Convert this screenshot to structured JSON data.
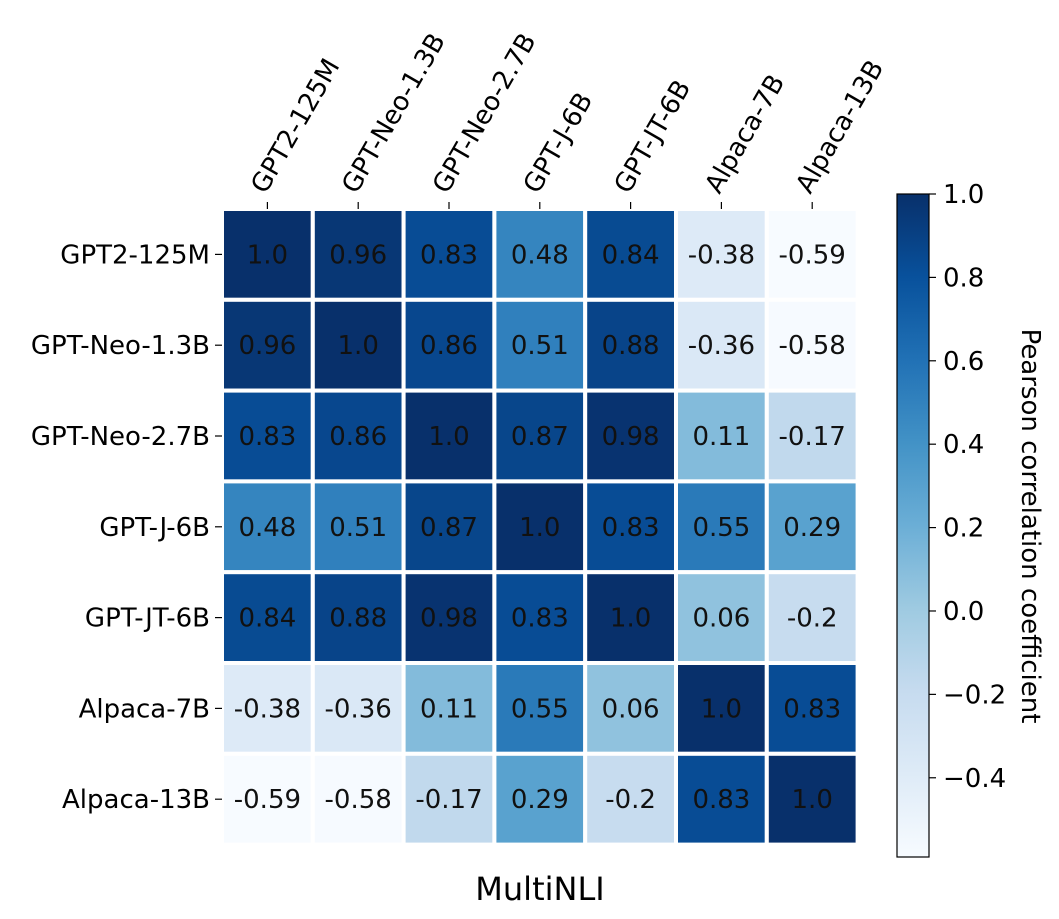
{
  "chart_data": {
    "type": "heatmap",
    "title": "",
    "xlabel": "MultiNLI",
    "ylabel": "",
    "x_categories": [
      "GPT2-125M",
      "GPT-Neo-1.3B",
      "GPT-Neo-2.7B",
      "GPT-J-6B",
      "GPT-JT-6B",
      "Alpaca-7B",
      "Alpaca-13B"
    ],
    "y_categories": [
      "GPT2-125M",
      "GPT-Neo-1.3B",
      "GPT-Neo-2.7B",
      "GPT-J-6B",
      "GPT-JT-6B",
      "Alpaca-7B",
      "Alpaca-13B"
    ],
    "values": [
      [
        1.0,
        0.96,
        0.83,
        0.48,
        0.84,
        -0.38,
        -0.59
      ],
      [
        0.96,
        1.0,
        0.86,
        0.51,
        0.88,
        -0.36,
        -0.58
      ],
      [
        0.83,
        0.86,
        1.0,
        0.87,
        0.98,
        0.11,
        -0.17
      ],
      [
        0.48,
        0.51,
        0.87,
        1.0,
        0.83,
        0.55,
        0.29
      ],
      [
        0.84,
        0.88,
        0.98,
        0.83,
        1.0,
        0.06,
        -0.2
      ],
      [
        -0.38,
        -0.36,
        0.11,
        0.55,
        0.06,
        1.0,
        0.83
      ],
      [
        -0.59,
        -0.58,
        -0.17,
        0.29,
        -0.2,
        0.83,
        1.0
      ]
    ],
    "cell_labels": [
      [
        "1.0",
        "0.96",
        "0.83",
        "0.48",
        "0.84",
        "-0.38",
        "-0.59"
      ],
      [
        "0.96",
        "1.0",
        "0.86",
        "0.51",
        "0.88",
        "-0.36",
        "-0.58"
      ],
      [
        "0.83",
        "0.86",
        "1.0",
        "0.87",
        "0.98",
        "0.11",
        "-0.17"
      ],
      [
        "0.48",
        "0.51",
        "0.87",
        "1.0",
        "0.83",
        "0.55",
        "0.29"
      ],
      [
        "0.84",
        "0.88",
        "0.98",
        "0.83",
        "1.0",
        "0.06",
        "-0.2"
      ],
      [
        "-0.38",
        "-0.36",
        "0.11",
        "0.55",
        "0.06",
        "1.0",
        "0.83"
      ],
      [
        "-0.59",
        "-0.58",
        "-0.17",
        "0.29",
        "-0.2",
        "0.83",
        "1.0"
      ]
    ],
    "colormap": "Blues",
    "colorbar": {
      "label": "Pearson correlation coefficient",
      "range": [
        -0.59,
        1.0
      ],
      "ticks": [
        1.0,
        0.8,
        0.6,
        0.4,
        0.2,
        0.0,
        -0.2,
        -0.4
      ],
      "tick_labels": [
        "1.0",
        "0.8",
        "0.6",
        "0.4",
        "0.2",
        "0.0",
        "−0.2",
        "−0.4"
      ]
    },
    "x_tick_position": "top",
    "x_tick_rotation": "60 degrees",
    "grid": false
  }
}
